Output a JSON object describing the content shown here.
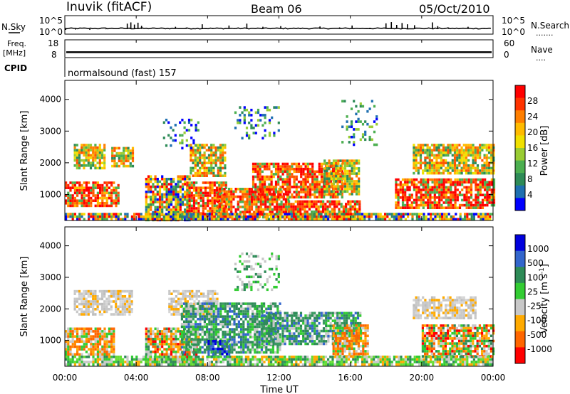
{
  "header": {
    "station": "Inuvik (fitACF)",
    "beam": "Beam 06",
    "date": "05/Oct/2010"
  },
  "strips": {
    "nsky": {
      "left_label": "N.Sky",
      "left_ticks": [
        "10^5",
        "10^0"
      ],
      "right_ticks": [
        "10^5",
        "10^0"
      ],
      "right_label": "N.Search",
      "right_dots": ".......",
      "baseline_log10": 1.2,
      "spikes": [
        [
          0.05,
          0.9
        ],
        [
          0.6,
          1.0
        ],
        [
          1.4,
          0.9
        ],
        [
          2.3,
          1.1
        ],
        [
          3.5,
          2.9
        ],
        [
          3.7,
          3.3
        ],
        [
          3.9,
          2.6
        ],
        [
          4.1,
          3.2
        ],
        [
          4.3,
          2.2
        ],
        [
          5.6,
          1.4
        ],
        [
          6.2,
          1.9
        ],
        [
          6.8,
          1.6
        ],
        [
          7.7,
          2.7
        ],
        [
          8.3,
          1.5
        ],
        [
          9.2,
          2.3
        ],
        [
          10.2,
          2.9
        ],
        [
          11.1,
          1.9
        ],
        [
          12.1,
          2.1
        ],
        [
          13.2,
          1.5
        ],
        [
          14.3,
          2.0
        ],
        [
          15.4,
          1.7
        ],
        [
          16.1,
          2.3
        ],
        [
          17.1,
          1.6
        ],
        [
          18.0,
          3.0
        ],
        [
          18.3,
          3.4
        ],
        [
          18.6,
          2.5
        ],
        [
          18.9,
          3.1
        ],
        [
          19.2,
          2.7
        ],
        [
          19.6,
          2.4
        ],
        [
          20.6,
          3.3
        ],
        [
          20.9,
          2.1
        ],
        [
          21.5,
          1.6
        ],
        [
          22.6,
          1.9
        ],
        [
          23.5,
          1.5
        ]
      ]
    },
    "freq": {
      "left_label": "Freq.",
      "left_unit": "[MHz]",
      "left_ticks": [
        "18",
        "8"
      ],
      "right_ticks": [
        "60",
        "0"
      ],
      "right_label": "Nave",
      "right_dots": "....",
      "freq_mhz": 11,
      "freq_range": [
        8,
        18
      ]
    },
    "cpid": {
      "label": "CPID",
      "program": "normalsound (fast) 157"
    }
  },
  "chart_data": [
    {
      "type": "heatmap",
      "name": "power",
      "ylabel": "Slant Range [km]",
      "x_ticks": [
        "00:00",
        "04:00",
        "08:00",
        "12:00",
        "16:00",
        "20:00",
        "00:00"
      ],
      "x_range_hours": [
        0,
        24
      ],
      "y_ticks": [
        1000,
        2000,
        3000,
        4000
      ],
      "y_range_km": [
        180,
        4600
      ],
      "colorbar": {
        "label": "Power [dB]",
        "ticks": [
          "28",
          "24",
          "20",
          "16",
          "12",
          "8",
          "4"
        ],
        "colors": [
          "#ff0000",
          "#ff3300",
          "#ff7f00",
          "#ffbb00",
          "#f0e000",
          "#99cc33",
          "#4caf50",
          "#2e8b57",
          "#1e6fb0",
          "#0000ff"
        ]
      },
      "regions": [
        {
          "t": [
            0.0,
            3.0
          ],
          "r": [
            600,
            1400
          ],
          "level": "high"
        },
        {
          "t": [
            0.5,
            2.2
          ],
          "r": [
            1800,
            2600
          ],
          "level": "mid"
        },
        {
          "t": [
            2.6,
            3.8
          ],
          "r": [
            1900,
            2500
          ],
          "level": "mid"
        },
        {
          "t": [
            4.5,
            7.0
          ],
          "r": [
            200,
            1600
          ],
          "level": "mixed"
        },
        {
          "t": [
            6.8,
            9.0
          ],
          "r": [
            200,
            1400
          ],
          "level": "high"
        },
        {
          "t": [
            7.0,
            9.0
          ],
          "r": [
            1600,
            2600
          ],
          "level": "mid"
        },
        {
          "t": [
            8.5,
            12.5
          ],
          "r": [
            300,
            1200
          ],
          "level": "high"
        },
        {
          "t": [
            10.5,
            15.5
          ],
          "r": [
            900,
            2000
          ],
          "level": "high"
        },
        {
          "t": [
            12.5,
            16.5
          ],
          "r": [
            200,
            800
          ],
          "level": "high"
        },
        {
          "t": [
            14.5,
            16.5
          ],
          "r": [
            1000,
            2100
          ],
          "level": "mid"
        },
        {
          "t": [
            18.5,
            24.0
          ],
          "r": [
            600,
            1500
          ],
          "level": "high"
        },
        {
          "t": [
            19.5,
            24.0
          ],
          "r": [
            1700,
            2600
          ],
          "level": "mid"
        },
        {
          "t": [
            5.5,
            7.5
          ],
          "r": [
            2500,
            3400
          ],
          "level": "low"
        },
        {
          "t": [
            9.5,
            12.0
          ],
          "r": [
            2800,
            3800
          ],
          "level": "low"
        },
        {
          "t": [
            15.5,
            17.5
          ],
          "r": [
            2600,
            4000
          ],
          "level": "low"
        },
        {
          "t": [
            0.0,
            24.0
          ],
          "r": [
            180,
            400
          ],
          "level": "mixed"
        }
      ]
    },
    {
      "type": "heatmap",
      "name": "velocity",
      "ylabel": "Slant Range [km]",
      "xlabel": "Time UT",
      "x_ticks": [
        "00:00",
        "04:00",
        "08:00",
        "12:00",
        "16:00",
        "20:00",
        "00:00"
      ],
      "x_range_hours": [
        0,
        24
      ],
      "y_ticks": [
        1000,
        2000,
        3000,
        4000
      ],
      "y_range_km": [
        180,
        4600
      ],
      "colorbar": {
        "label": "Velocity [m s",
        "label_sup": "-1",
        "label_close": "]",
        "ticks": [
          "1000",
          "500",
          "100",
          "25",
          "-25",
          "-100",
          "-500",
          "-1000"
        ],
        "colors": [
          "#0000dd",
          "#3366cc",
          "#2e8b57",
          "#33cc33",
          "#c8c8c8",
          "#ffaa00",
          "#ff6600",
          "#ff0000"
        ]
      },
      "regions": [
        {
          "t": [
            0.0,
            2.8
          ],
          "r": [
            500,
            1400
          ],
          "level": "neg"
        },
        {
          "t": [
            0.5,
            3.8
          ],
          "r": [
            1800,
            2600
          ],
          "level": "gray"
        },
        {
          "t": [
            4.5,
            7.5
          ],
          "r": [
            300,
            1400
          ],
          "level": "mixed"
        },
        {
          "t": [
            5.8,
            8.5
          ],
          "r": [
            1800,
            2600
          ],
          "level": "gray"
        },
        {
          "t": [
            6.5,
            12.0
          ],
          "r": [
            600,
            2200
          ],
          "level": "pos"
        },
        {
          "t": [
            8.0,
            9.2
          ],
          "r": [
            500,
            1000
          ],
          "level": "strong"
        },
        {
          "t": [
            11.0,
            16.5
          ],
          "r": [
            900,
            1900
          ],
          "level": "pos"
        },
        {
          "t": [
            15.0,
            17.0
          ],
          "r": [
            500,
            1500
          ],
          "level": "neg"
        },
        {
          "t": [
            19.5,
            23.0
          ],
          "r": [
            1700,
            2400
          ],
          "level": "gray"
        },
        {
          "t": [
            20.0,
            24.0
          ],
          "r": [
            500,
            1500
          ],
          "level": "mixed"
        },
        {
          "t": [
            0.0,
            24.0
          ],
          "r": [
            180,
            500
          ],
          "level": "lowgreen"
        },
        {
          "t": [
            9.5,
            12.0
          ],
          "r": [
            2600,
            3800
          ],
          "level": "faint"
        }
      ]
    }
  ]
}
